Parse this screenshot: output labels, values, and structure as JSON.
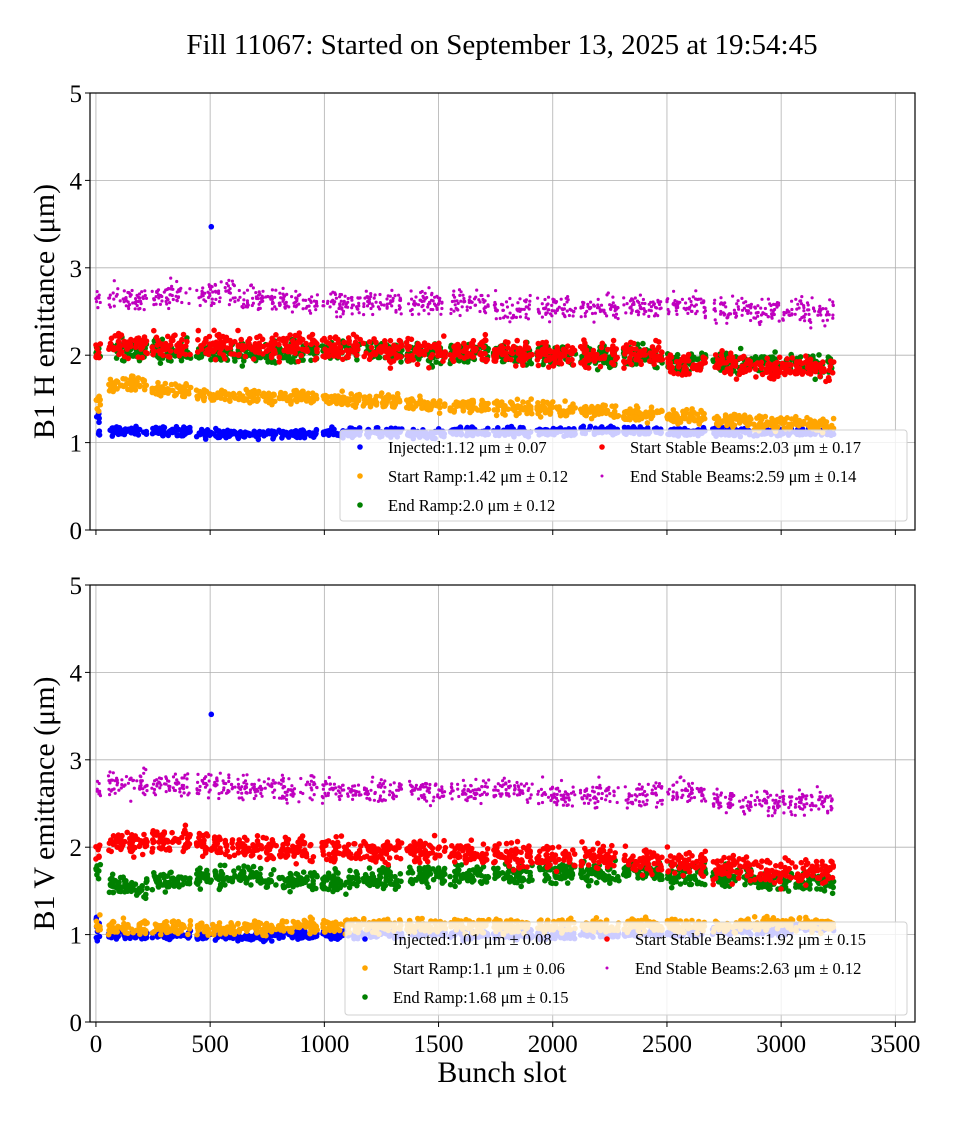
{
  "chart_data": {
    "title": "Fill 11067: Started on September 13, 2025 at 19:54:45",
    "shared_xlabel": "Bunch slot",
    "x_ticks": [
      0,
      500,
      1000,
      1500,
      2000,
      2500,
      3000,
      3500
    ],
    "xlim": [
      -26,
      3586
    ],
    "train_start_slots": [
      55,
      245,
      440,
      620,
      800,
      990,
      1170,
      1360,
      1550,
      1740,
      1930,
      2120,
      2310,
      2500,
      2700,
      2880,
      3060
    ],
    "train_length_slots": 170,
    "panels": [
      {
        "type": "scatter",
        "ylabel": "B1 H emittance (μm)",
        "ylim": [
          0,
          5
        ],
        "y_ticks": [
          0,
          1,
          2,
          3,
          4,
          5
        ],
        "grid": true,
        "legend_position": "lower-right",
        "series": [
          {
            "name": "Injected:1.12 μm ± 0.07",
            "color": "#0000ff",
            "mean": 1.12,
            "std": 0.07,
            "train_means": [
              1.13,
              1.13,
              1.1,
              1.1,
              1.1,
              1.12,
              1.12,
              1.1,
              1.12,
              1.12,
              1.12,
              1.13,
              1.13,
              1.12,
              1.12,
              1.12,
              1.12
            ],
            "outliers": [
              [
                505,
                3.47
              ]
            ]
          },
          {
            "name": "Start Ramp:1.42 μm ± 0.12",
            "color": "#ffa500",
            "mean": 1.42,
            "std": 0.12,
            "train_means": [
              1.67,
              1.6,
              1.55,
              1.52,
              1.52,
              1.5,
              1.47,
              1.44,
              1.42,
              1.4,
              1.38,
              1.36,
              1.33,
              1.3,
              1.26,
              1.22,
              1.2
            ]
          },
          {
            "name": "End Ramp:2.0 μm ± 0.12",
            "color": "#008000",
            "mean": 2.0,
            "std": 0.12,
            "train_means": [
              2.05,
              2.05,
              2.02,
              2.02,
              2.05,
              2.05,
              2.05,
              2.02,
              2.02,
              2.0,
              2.0,
              1.98,
              1.98,
              1.92,
              1.92,
              1.9,
              1.88
            ]
          },
          {
            "name": "Start Stable Beams:2.03 μm ± 0.17",
            "color": "#ff0000",
            "mean": 2.03,
            "std": 0.17,
            "train_means": [
              2.12,
              2.1,
              2.12,
              2.1,
              2.1,
              2.08,
              2.05,
              2.05,
              2.05,
              2.02,
              2.0,
              2.0,
              2.0,
              1.9,
              1.9,
              1.85,
              1.85
            ]
          },
          {
            "name": "End Stable Beams:2.59 μm ± 0.14",
            "color": "#bf00bf",
            "mean": 2.59,
            "std": 0.14,
            "train_means": [
              2.65,
              2.68,
              2.72,
              2.65,
              2.62,
              2.6,
              2.62,
              2.6,
              2.6,
              2.55,
              2.55,
              2.55,
              2.55,
              2.55,
              2.52,
              2.48,
              2.5
            ]
          }
        ]
      },
      {
        "type": "scatter",
        "ylabel": "B1 V emittance (μm)",
        "xlabel": "Bunch slot",
        "ylim": [
          0,
          5
        ],
        "y_ticks": [
          0,
          1,
          2,
          3,
          4,
          5
        ],
        "grid": true,
        "legend_position": "lower-right",
        "series": [
          {
            "name": "Injected:1.01 μm ± 0.08",
            "color": "#0000ff",
            "mean": 1.01,
            "std": 0.08,
            "train_means": [
              1.0,
              1.0,
              0.98,
              0.98,
              1.0,
              1.0,
              1.0,
              1.02,
              1.0,
              1.0,
              1.0,
              1.02,
              1.02,
              1.02,
              1.05,
              1.05,
              1.08
            ],
            "outliers": [
              [
                505,
                3.52
              ]
            ]
          },
          {
            "name": "Start Ramp:1.1 μm ± 0.06",
            "color": "#ffa500",
            "mean": 1.1,
            "std": 0.06,
            "train_means": [
              1.08,
              1.08,
              1.06,
              1.08,
              1.1,
              1.1,
              1.1,
              1.1,
              1.1,
              1.1,
              1.1,
              1.1,
              1.1,
              1.1,
              1.1,
              1.12,
              1.12
            ]
          },
          {
            "name": "End Ramp:1.68 μm ± 0.15",
            "color": "#008000",
            "mean": 1.68,
            "std": 0.15,
            "train_means": [
              1.55,
              1.62,
              1.65,
              1.65,
              1.62,
              1.62,
              1.65,
              1.68,
              1.68,
              1.68,
              1.7,
              1.7,
              1.72,
              1.68,
              1.68,
              1.6,
              1.6
            ]
          },
          {
            "name": "Start Stable Beams:1.92 μm ± 0.15",
            "color": "#ff0000",
            "mean": 1.92,
            "std": 0.15,
            "train_means": [
              2.05,
              2.08,
              2.02,
              2.0,
              1.98,
              1.95,
              1.95,
              1.95,
              1.92,
              1.92,
              1.88,
              1.88,
              1.85,
              1.82,
              1.75,
              1.72,
              1.72
            ]
          },
          {
            "name": "End Stable Beams:2.63 μm ± 0.12",
            "color": "#bf00bf",
            "mean": 2.63,
            "std": 0.12,
            "train_means": [
              2.72,
              2.72,
              2.7,
              2.68,
              2.65,
              2.65,
              2.65,
              2.65,
              2.65,
              2.65,
              2.6,
              2.6,
              2.6,
              2.65,
              2.52,
              2.52,
              2.52
            ]
          }
        ]
      }
    ]
  }
}
